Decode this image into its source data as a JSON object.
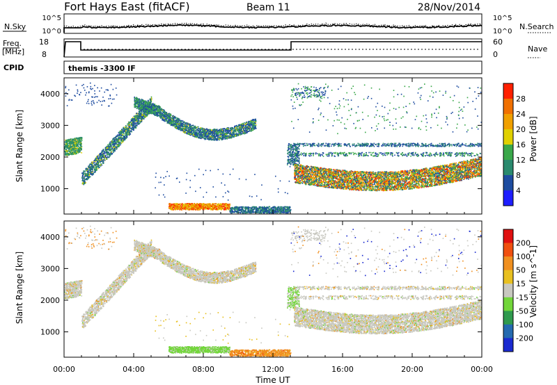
{
  "header": {
    "station": "Fort Hays East (fitACF)",
    "beam": "Beam 11",
    "date": "28/Nov/2014"
  },
  "top_panels": {
    "nsky_label": "N.Sky",
    "nsearch_label": "N.Search",
    "noise_ticks": [
      "10^5",
      "10^0"
    ],
    "freq_label_1": "Freq.",
    "freq_label_2": "[MHz]",
    "freq_ticks": [
      "18",
      "8"
    ],
    "nave_label": "Nave",
    "nave_ticks": [
      "60",
      "0"
    ],
    "cpid_label": "CPID",
    "cpid_text": "themis -3300 IF"
  },
  "chart_data": [
    {
      "type": "heatmap",
      "name": "power",
      "ylabel": "Slant Range [km]",
      "yticks": [
        "4000",
        "3000",
        "2000",
        "1000"
      ],
      "ylim": [
        200,
        4500
      ],
      "colorbar_label": "Power [dB]",
      "colorbar_ticks": [
        "28",
        "24",
        "20",
        "16",
        "12",
        "8",
        "4"
      ],
      "colors": [
        "#1e1eff",
        "#1e4ca0",
        "#2a8a6e",
        "#3aa84a",
        "#e0d000",
        "#f0a000",
        "#f07000",
        "#ff2000"
      ]
    },
    {
      "type": "heatmap",
      "name": "velocity",
      "ylabel": "Slant Range [km]",
      "yticks": [
        "4000",
        "3000",
        "2000",
        "1000"
      ],
      "ylim": [
        200,
        4500
      ],
      "colorbar_label": "Velocity [m s^-1]",
      "colorbar_ticks": [
        "200",
        "100",
        "50",
        "15",
        "-15",
        "-50",
        "-100",
        "-200"
      ],
      "colors": [
        "#1a2ad0",
        "#246ab0",
        "#2f9a4e",
        "#72d63a",
        "#c8c8c0",
        "#e8c020",
        "#f09020",
        "#f05010",
        "#e01010"
      ]
    }
  ],
  "time_axis": {
    "ticks": [
      "00:00",
      "04:00",
      "08:00",
      "12:00",
      "16:00",
      "20:00",
      "00:00"
    ],
    "xlabel": "Time UT"
  }
}
